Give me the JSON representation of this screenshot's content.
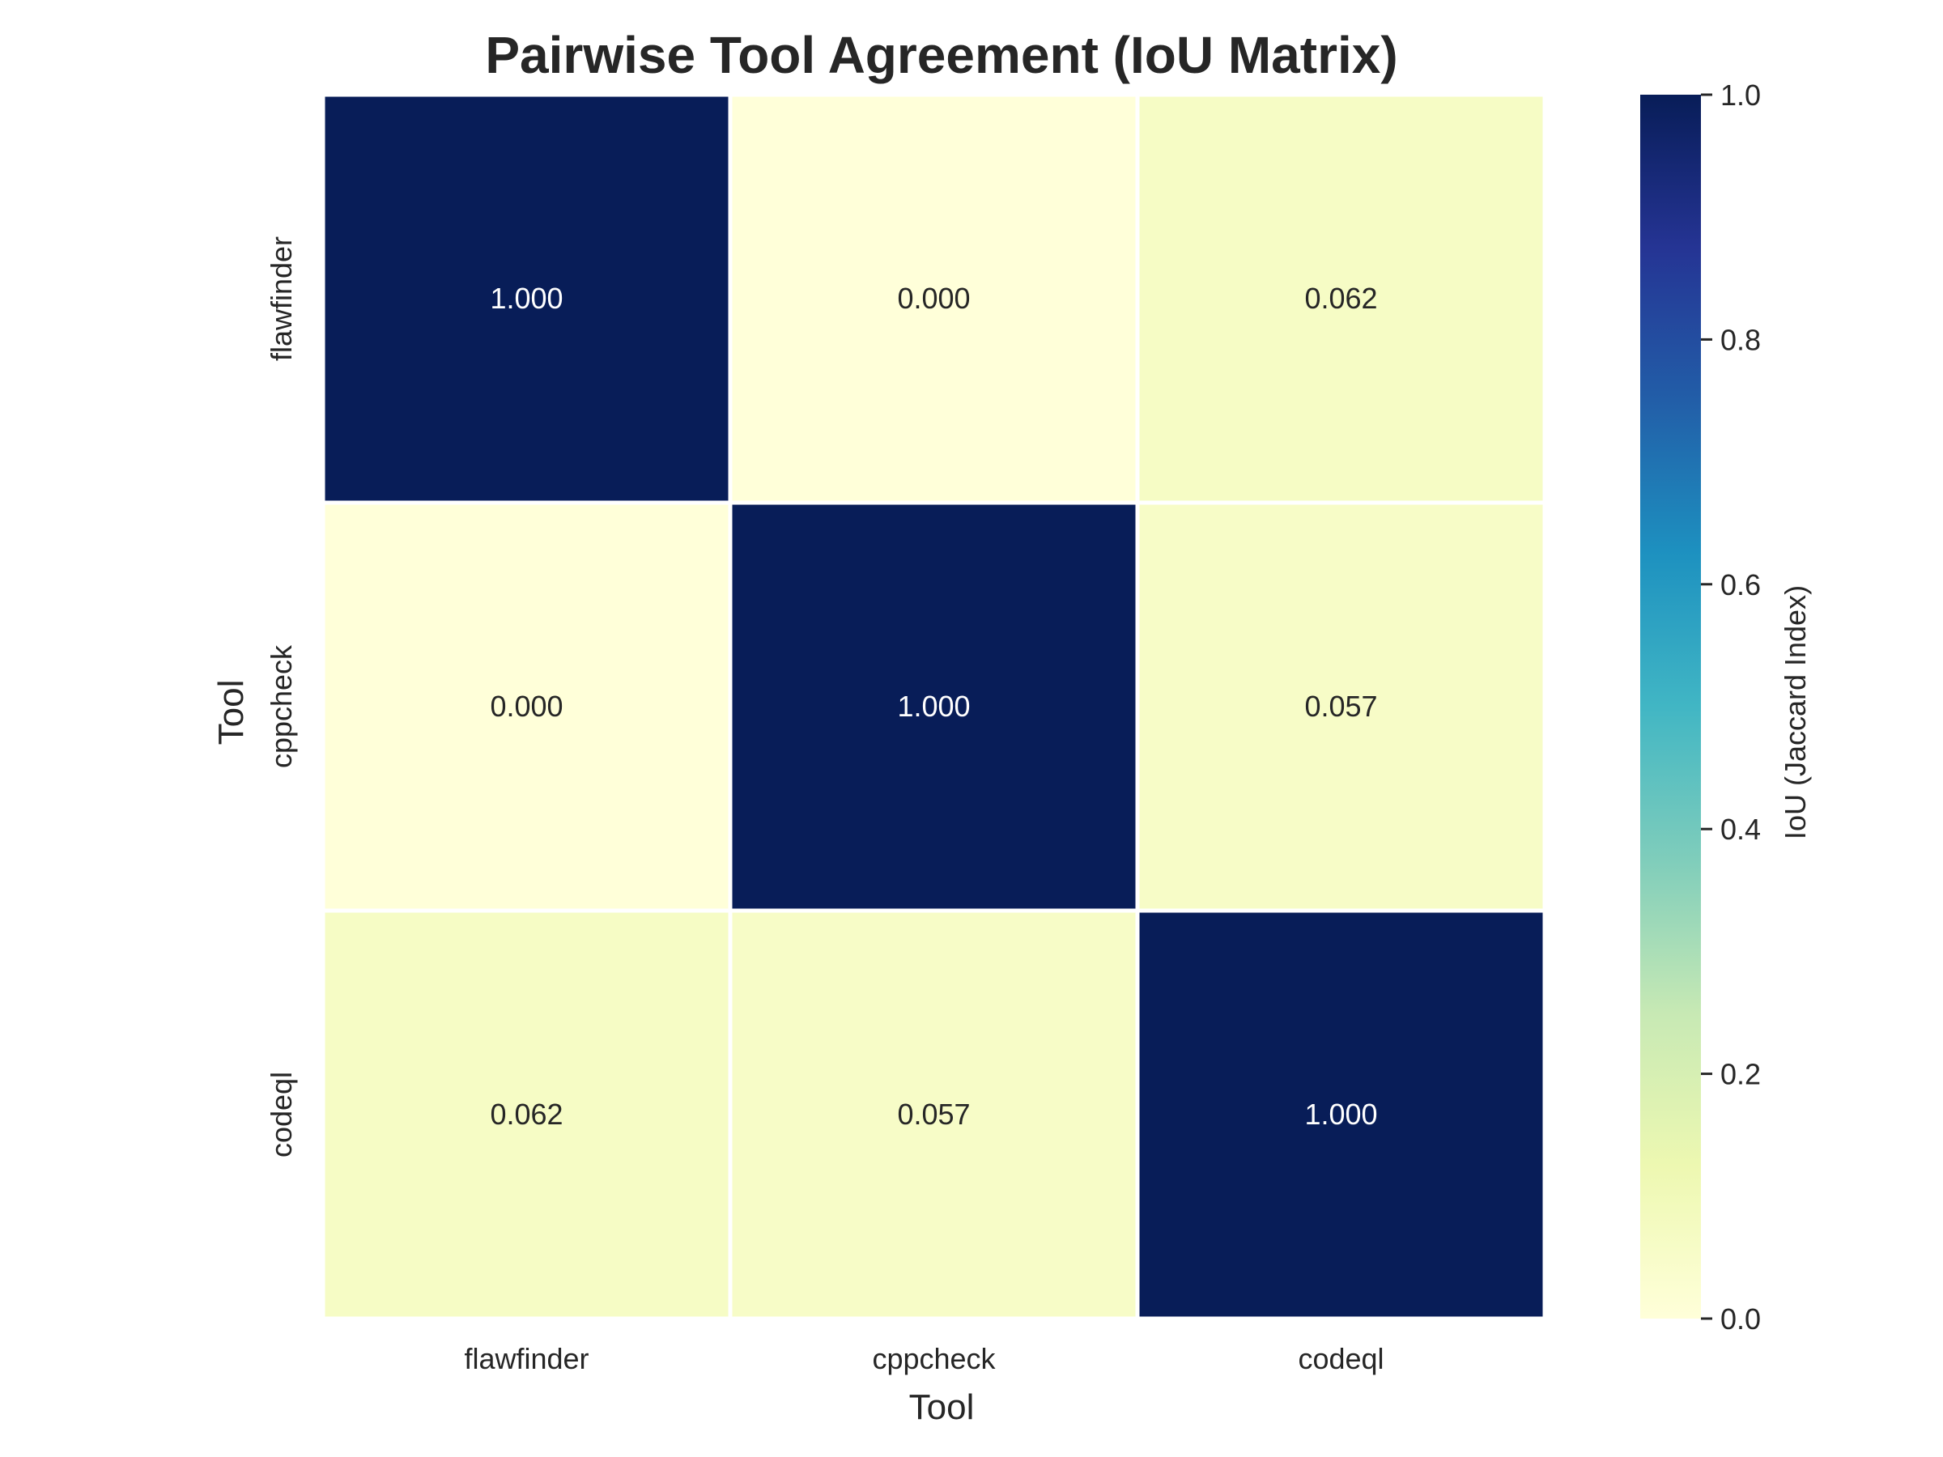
{
  "chart_data": {
    "type": "heatmap",
    "title": "Pairwise Tool Agreement (IoU Matrix)",
    "xlabel": "Tool",
    "ylabel": "Tool",
    "x_categories": [
      "flawfinder",
      "cppcheck",
      "codeql"
    ],
    "y_categories": [
      "flawfinder",
      "cppcheck",
      "codeql"
    ],
    "values": [
      [
        1.0,
        0.0,
        0.062
      ],
      [
        0.0,
        1.0,
        0.057
      ],
      [
        0.062,
        0.057,
        1.0
      ]
    ],
    "value_labels": [
      [
        "1.000",
        "0.000",
        "0.062"
      ],
      [
        "0.000",
        "1.000",
        "0.057"
      ],
      [
        "0.062",
        "0.057",
        "1.000"
      ]
    ],
    "colorbar": {
      "label": "IoU (Jaccard Index)",
      "range": [
        0.0,
        1.0
      ],
      "ticks": [
        0.0,
        0.2,
        0.4,
        0.6,
        0.8,
        1.0
      ],
      "tick_labels": [
        "0.0",
        "0.2",
        "0.4",
        "0.6",
        "0.8",
        "1.0"
      ],
      "colormap": "YlGnBu"
    },
    "colors": {
      "low": "#ffffd9",
      "high": "#081d58",
      "text_dark": "#262626",
      "text_light": "#ffffff",
      "cell_border": "#ffffff"
    },
    "grid": false
  }
}
